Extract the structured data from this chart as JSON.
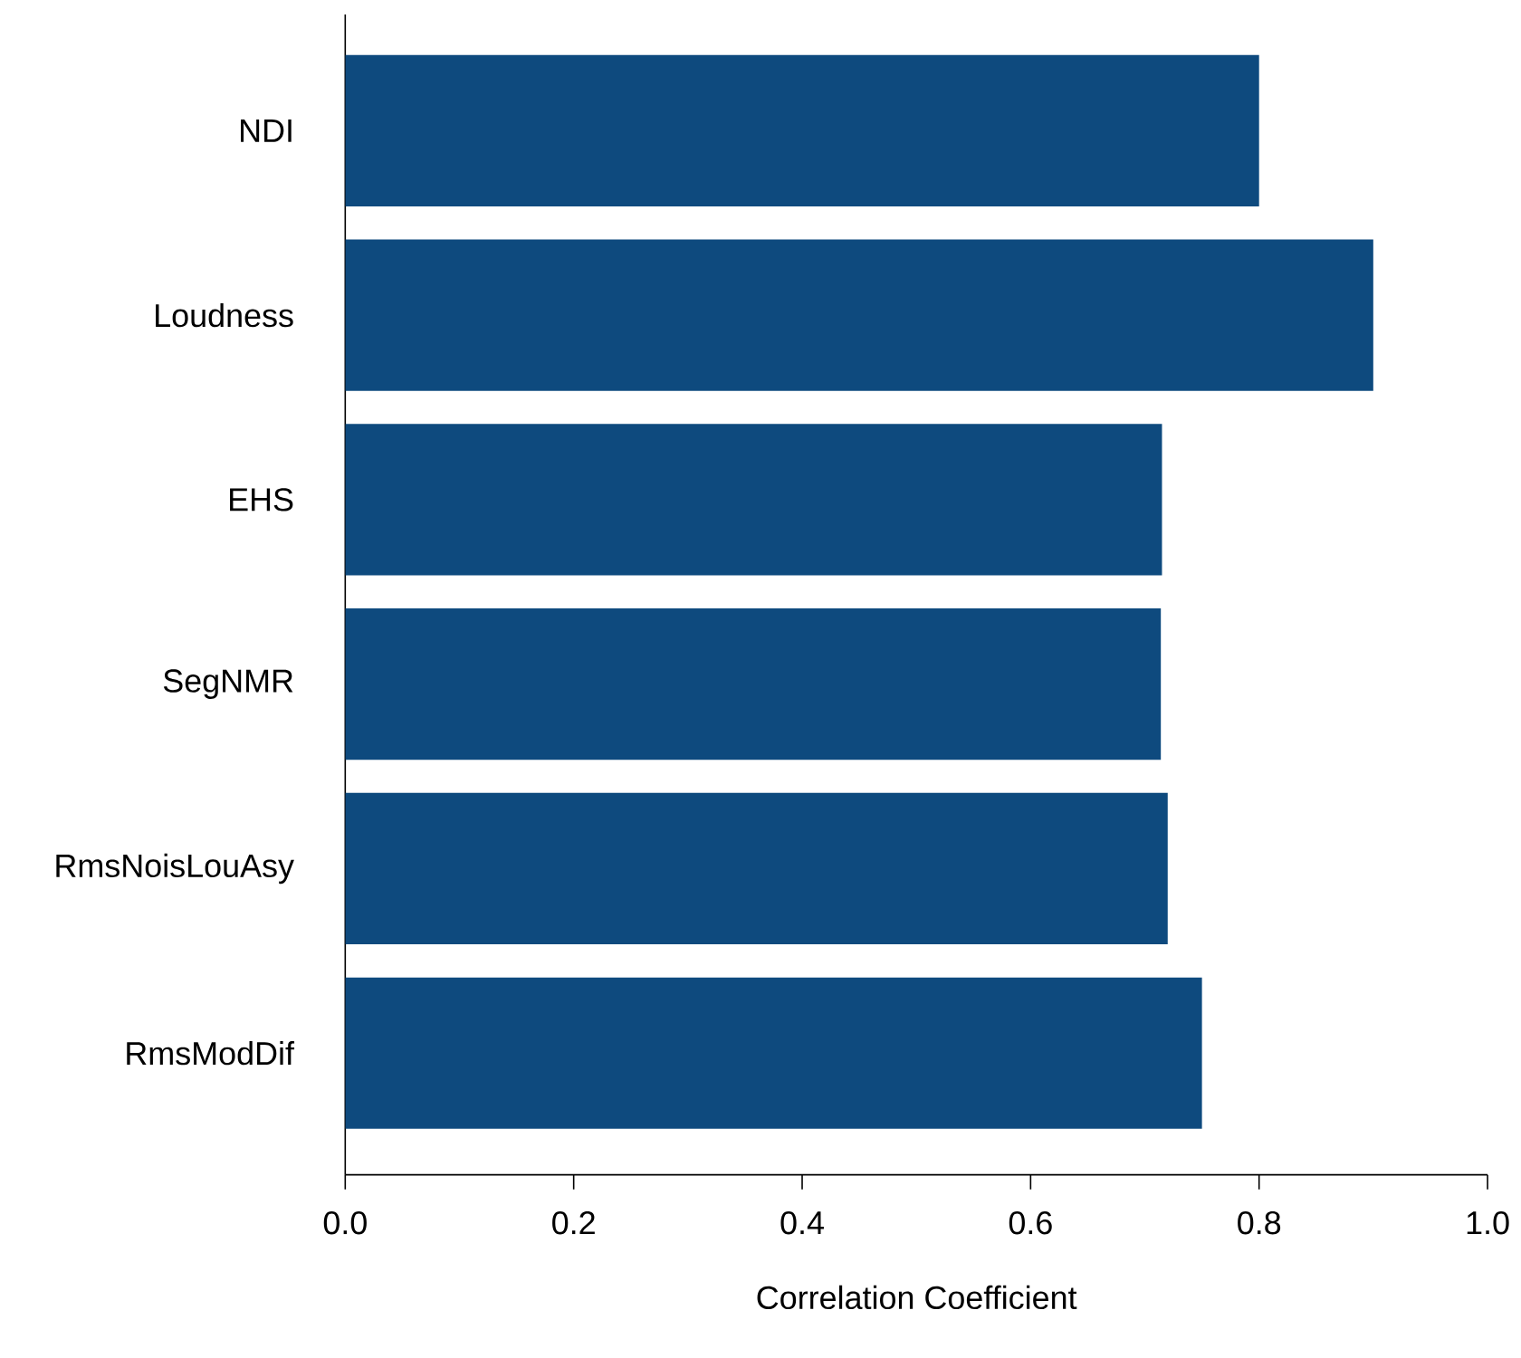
{
  "chart_data": {
    "type": "bar",
    "orientation": "horizontal",
    "xlabel": "Correlation Coefficient",
    "categories": [
      "NDI",
      "Loudness",
      "EHS",
      "SegNMR",
      "RmsNoisLouAsy",
      "RmsModDif"
    ],
    "values": [
      0.8,
      0.9,
      0.715,
      0.714,
      0.72,
      0.75
    ],
    "color": "#0e4a7e",
    "xlim": [
      0,
      1
    ],
    "xticks": [
      {
        "value": 0,
        "label": "0.0"
      },
      {
        "value": 0.2,
        "label": "0.2"
      },
      {
        "value": 0.4,
        "label": "0.4"
      },
      {
        "value": 0.6,
        "label": "0.6"
      },
      {
        "value": 0.8,
        "label": "0.8"
      },
      {
        "value": 1,
        "label": "1.0"
      }
    ]
  }
}
